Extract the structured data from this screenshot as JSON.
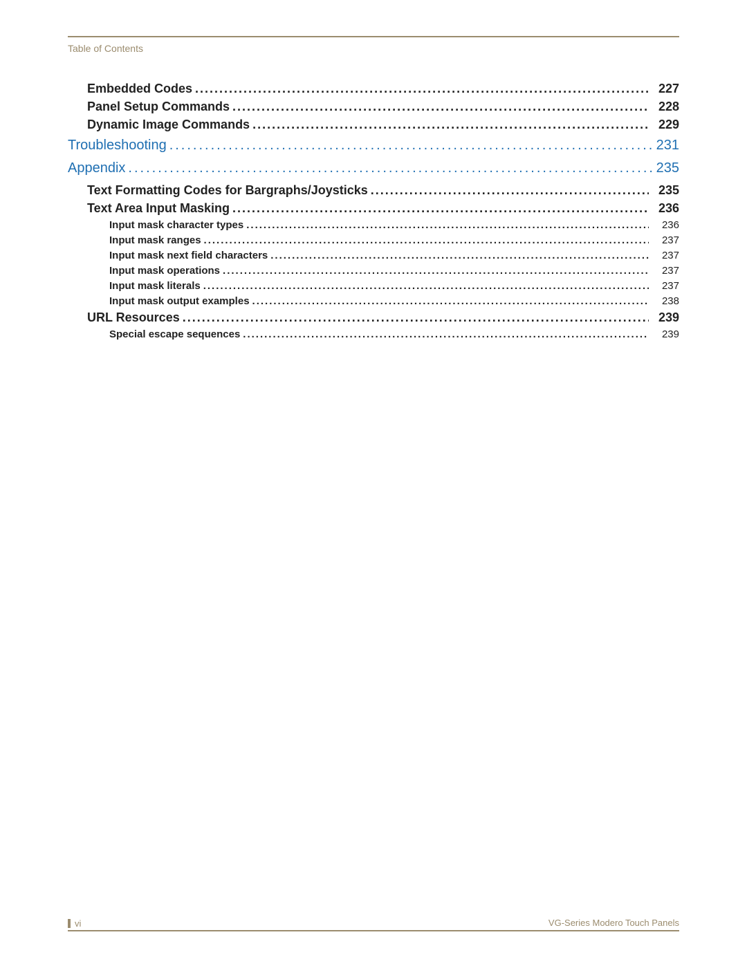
{
  "colors": {
    "rule": "#9b8c6e",
    "headerText": "#9b8c6e",
    "link": "#1f6fb2",
    "body": "#222222",
    "background": "#ffffff"
  },
  "typography": {
    "headerSize": 14,
    "level0Size": 20,
    "level1Size": 18,
    "level2Size": 15,
    "footerSize": 13
  },
  "header": {
    "label": "Table of Contents"
  },
  "toc": {
    "entries": [
      {
        "level": 1,
        "title": "Embedded Codes",
        "page": "227"
      },
      {
        "level": 1,
        "title": "Panel Setup Commands",
        "page": "228"
      },
      {
        "level": 1,
        "title": "Dynamic Image Commands",
        "page": "229"
      },
      {
        "level": 0,
        "title": "Troubleshooting",
        "page": "231"
      },
      {
        "level": 0,
        "title": "Appendix",
        "page": "235"
      },
      {
        "level": 1,
        "title": "Text Formatting Codes for Bargraphs/Joysticks",
        "page": "235"
      },
      {
        "level": 1,
        "title": "Text Area Input Masking",
        "page": "236"
      },
      {
        "level": 2,
        "title": "Input mask character types",
        "page": "236"
      },
      {
        "level": 2,
        "title": "Input mask ranges",
        "page": "237"
      },
      {
        "level": 2,
        "title": "Input mask next field characters",
        "page": "237"
      },
      {
        "level": 2,
        "title": "Input mask operations",
        "page": "237"
      },
      {
        "level": 2,
        "title": "Input mask literals",
        "page": "237"
      },
      {
        "level": 2,
        "title": "Input mask output examples",
        "page": "238"
      },
      {
        "level": 1,
        "title": "URL Resources",
        "page": "239"
      },
      {
        "level": 2,
        "title": "Special escape sequences",
        "page": "239"
      }
    ]
  },
  "footer": {
    "pageRoman": "vi",
    "docTitle": "VG-Series Modero Touch Panels"
  }
}
